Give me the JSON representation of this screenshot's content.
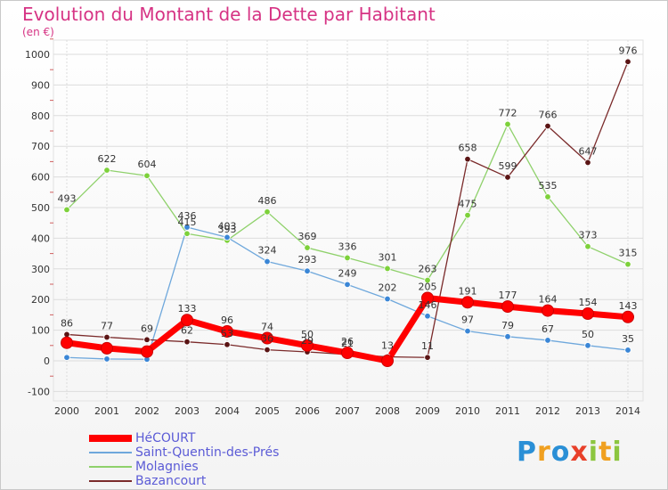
{
  "title": "Evolution du Montant de la Dette par Habitant",
  "unit": "(en €)",
  "logo": {
    "letters": [
      {
        "char": "P",
        "color": "#2a8fd6"
      },
      {
        "char": "r",
        "color": "#f0a020"
      },
      {
        "char": "o",
        "color": "#2a8fd6"
      },
      {
        "char": "x",
        "color": "#e8402a"
      },
      {
        "char": "i",
        "color": "#8cc63f"
      },
      {
        "char": "t",
        "color": "#f0a020"
      },
      {
        "char": "i",
        "color": "#8cc63f"
      }
    ]
  },
  "chart_data": {
    "type": "line",
    "x": [
      "2000",
      "2001",
      "2002",
      "2003",
      "2004",
      "2005",
      "2006",
      "2007",
      "2008",
      "2009",
      "2010",
      "2011",
      "2012",
      "2013",
      "2014"
    ],
    "ylim": [
      -100,
      1000
    ],
    "yticks": [
      "-100",
      "0",
      "100",
      "200",
      "300",
      "400",
      "500",
      "600",
      "700",
      "800",
      "900",
      "1000"
    ],
    "grid": true,
    "legend_position": "bottom-left",
    "series": [
      {
        "name": "HéCOURT",
        "color": "#ff0000",
        "values": [
          59,
          41,
          30,
          133,
          96,
          74,
          50,
          26,
          0,
          205,
          191,
          177,
          164,
          154,
          143
        ],
        "labels": [
          "",
          "",
          "",
          "133",
          "96",
          "74",
          "50",
          "26",
          "",
          "205",
          "191",
          "177",
          "164",
          "154",
          "143"
        ]
      },
      {
        "name": "Saint-Quentin-des-Prés",
        "color": "#6fa8dc",
        "values": [
          11,
          6,
          5,
          436,
          403,
          324,
          293,
          249,
          202,
          146,
          97,
          79,
          67,
          50,
          35
        ],
        "labels": [
          "",
          "",
          "",
          "436",
          "403",
          "324",
          "293",
          "249",
          "202",
          "146",
          "97",
          "79",
          "67",
          "50",
          "35"
        ]
      },
      {
        "name": "Molagnies",
        "color": "#8fd16b",
        "values": [
          493,
          622,
          604,
          415,
          393,
          486,
          369,
          336,
          301,
          263,
          475,
          772,
          535,
          373,
          315
        ],
        "labels": [
          "493",
          "622",
          "604",
          "415",
          "393",
          "486",
          "369",
          "336",
          "301",
          "263",
          "475",
          "772",
          "535",
          "373",
          "315"
        ]
      },
      {
        "name": "Bazancourt",
        "color": "#7a2a2a",
        "values": [
          86,
          77,
          69,
          62,
          53,
          36,
          29,
          21,
          13,
          11,
          658,
          599,
          766,
          647,
          976
        ],
        "labels": [
          "86",
          "77",
          "69",
          "62",
          "53",
          "36",
          "29",
          "21",
          "13",
          "11",
          "658",
          "599",
          "766",
          "647",
          "976"
        ]
      }
    ]
  }
}
